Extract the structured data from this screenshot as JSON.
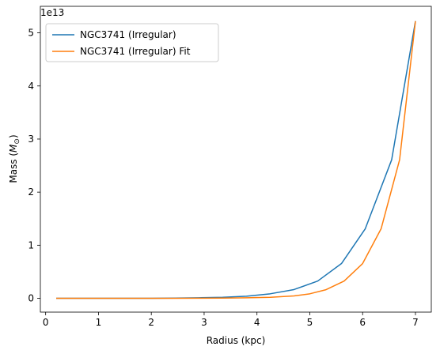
{
  "chart_data": {
    "type": "line",
    "title": "",
    "xlabel": "Radius (kpc)",
    "ylabel_prefix": "Mass (",
    "ylabel_symbol": "M",
    "ylabel_subscript": "⊙",
    "ylabel_suffix": ")",
    "offset_text": "1e13",
    "xlim": [
      -0.1,
      7.3
    ],
    "ylim": [
      -0.26,
      5.5
    ],
    "xticks": [
      0,
      1,
      2,
      3,
      4,
      5,
      6,
      7
    ],
    "yticks": [
      0,
      1,
      2,
      3,
      4,
      5
    ],
    "grid": false,
    "legend_position": "upper-left",
    "series": [
      {
        "name": "NGC3741 (Irregular)",
        "color": "#1f77b4",
        "x": [
          0.2,
          0.65,
          1.1,
          1.55,
          2.0,
          2.45,
          2.9,
          3.35,
          3.8,
          4.25,
          4.7,
          5.15,
          5.6,
          6.05,
          6.55,
          7.0
        ],
        "y": [
          0.0,
          0.0,
          0.0,
          0.0,
          0.0,
          0.004,
          0.01,
          0.02,
          0.04,
          0.085,
          0.165,
          0.325,
          0.655,
          1.31,
          2.61,
          5.22
        ]
      },
      {
        "name": "NGC3741 (Irregular) Fit",
        "color": "#ff7f0e",
        "x": [
          0.2,
          0.65,
          1.1,
          1.55,
          2.0,
          2.45,
          2.9,
          3.35,
          3.8,
          4.25,
          4.7,
          5.0,
          5.3,
          5.65,
          6.0,
          6.35,
          6.7,
          7.0
        ],
        "y": [
          0.0,
          0.0,
          0.0,
          0.0,
          0.0,
          0.0,
          0.002,
          0.005,
          0.01,
          0.02,
          0.045,
          0.085,
          0.16,
          0.325,
          0.655,
          1.31,
          2.61,
          5.22
        ]
      }
    ]
  }
}
